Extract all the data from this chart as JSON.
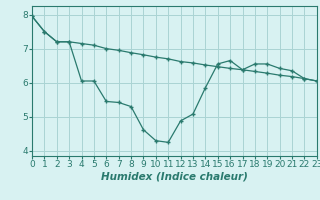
{
  "line1_x": [
    0,
    1,
    2,
    3,
    4,
    5,
    6,
    7,
    8,
    9,
    10,
    11,
    12,
    13,
    14,
    15,
    16,
    17,
    18,
    19,
    20,
    21,
    22,
    23
  ],
  "line1_y": [
    7.95,
    7.5,
    7.2,
    7.2,
    7.15,
    7.1,
    7.0,
    6.95,
    6.88,
    6.82,
    6.75,
    6.7,
    6.62,
    6.58,
    6.52,
    6.47,
    6.42,
    6.38,
    6.33,
    6.28,
    6.22,
    6.18,
    6.12,
    6.05
  ],
  "line2_x": [
    0,
    1,
    2,
    3,
    4,
    5,
    6,
    7,
    8,
    9,
    10,
    11,
    12,
    13,
    14,
    15,
    16,
    17,
    18,
    19,
    20,
    21,
    22,
    23
  ],
  "line2_y": [
    7.95,
    7.5,
    7.2,
    7.2,
    6.05,
    6.05,
    5.45,
    5.42,
    5.3,
    4.62,
    4.3,
    4.25,
    4.88,
    5.08,
    5.85,
    6.55,
    6.65,
    6.38,
    6.55,
    6.55,
    6.42,
    6.35,
    6.12,
    6.05
  ],
  "line_color": "#2a7a6e",
  "bg_color": "#d8f2f2",
  "grid_color": "#aad4d4",
  "xlabel": "Humidex (Indice chaleur)",
  "xlim": [
    0,
    23
  ],
  "ylim": [
    3.85,
    8.25
  ],
  "yticks": [
    4,
    5,
    6,
    7,
    8
  ],
  "xticks": [
    0,
    1,
    2,
    3,
    4,
    5,
    6,
    7,
    8,
    9,
    10,
    11,
    12,
    13,
    14,
    15,
    16,
    17,
    18,
    19,
    20,
    21,
    22,
    23
  ],
  "tick_fontsize": 6.5,
  "xlabel_fontsize": 7.5
}
